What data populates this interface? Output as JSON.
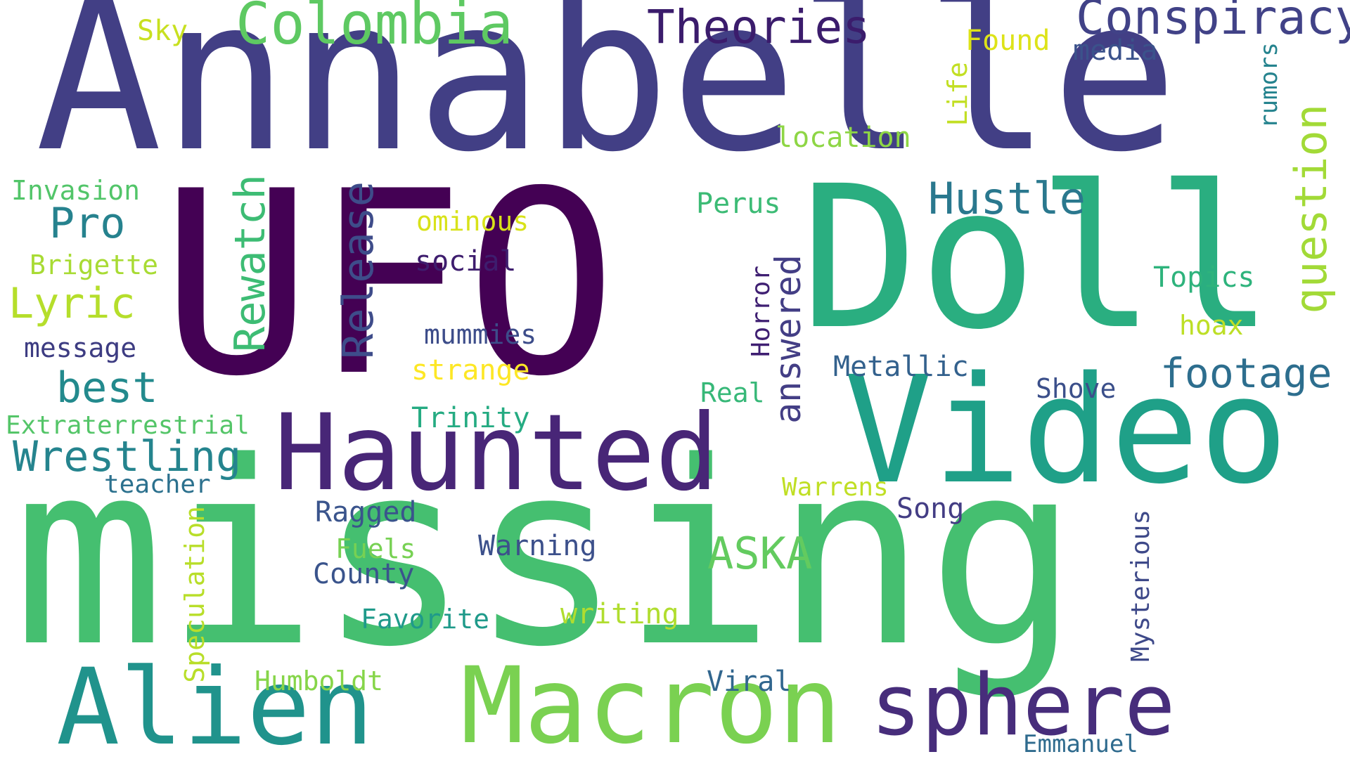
{
  "background_color": "#ffffff",
  "words": [
    {
      "id": "annabelle",
      "text": "Annabelle",
      "color": "#423f85",
      "vertical": false
    },
    {
      "id": "ufo",
      "text": "UFO",
      "color": "#440154",
      "vertical": false
    },
    {
      "id": "doll",
      "text": "Doll",
      "color": "#2aae80",
      "vertical": false
    },
    {
      "id": "missing",
      "text": "missing",
      "color": "#45bf70",
      "vertical": false
    },
    {
      "id": "video",
      "text": "Video",
      "color": "#1fa088",
      "vertical": false
    },
    {
      "id": "haunted",
      "text": "Haunted",
      "color": "#482677",
      "vertical": false
    },
    {
      "id": "macron",
      "text": "Macron",
      "color": "#7ad151",
      "vertical": false
    },
    {
      "id": "alien",
      "text": "Alien",
      "color": "#20938c",
      "vertical": false
    },
    {
      "id": "sphere",
      "text": "sphere",
      "color": "#472d7b",
      "vertical": false
    },
    {
      "id": "colombia",
      "text": "Colombia",
      "color": "#5ec962",
      "vertical": false
    },
    {
      "id": "theories",
      "text": "Theories",
      "color": "#3b1c6c",
      "vertical": false
    },
    {
      "id": "conspiracy",
      "text": "Conspiracy",
      "color": "#414287",
      "vertical": false
    },
    {
      "id": "media",
      "text": "media",
      "color": "#3b528b",
      "vertical": false
    },
    {
      "id": "found",
      "text": "Found",
      "color": "#dde318",
      "vertical": false
    },
    {
      "id": "sky",
      "text": "Sky",
      "color": "#c8e020",
      "vertical": false
    },
    {
      "id": "life",
      "text": "Life",
      "color": "#c2df23",
      "vertical": true
    },
    {
      "id": "rumors",
      "text": "rumors",
      "color": "#25838e",
      "vertical": true
    },
    {
      "id": "question",
      "text": "question",
      "color": "#a2da37",
      "vertical": true
    },
    {
      "id": "location",
      "text": "location",
      "color": "#8ed645",
      "vertical": false
    },
    {
      "id": "hustle",
      "text": "Hustle",
      "color": "#2a788e",
      "vertical": false
    },
    {
      "id": "perus",
      "text": "Perus",
      "color": "#3cbb75",
      "vertical": false
    },
    {
      "id": "invasion",
      "text": "Invasion",
      "color": "#52c569",
      "vertical": false
    },
    {
      "id": "pro",
      "text": "Pro",
      "color": "#26828e",
      "vertical": false
    },
    {
      "id": "rewatch",
      "text": "Rewatch",
      "color": "#3dbc74",
      "vertical": true
    },
    {
      "id": "release",
      "text": "Release",
      "color": "#3e4c8a",
      "vertical": true
    },
    {
      "id": "ominous",
      "text": "ominous",
      "color": "#d8e219",
      "vertical": false
    },
    {
      "id": "social",
      "text": "social",
      "color": "#3e1d6e",
      "vertical": false
    },
    {
      "id": "brigette",
      "text": "Brigette",
      "color": "#a8db34",
      "vertical": false
    },
    {
      "id": "lyric",
      "text": "Lyric",
      "color": "#b5de2b",
      "vertical": false
    },
    {
      "id": "topics",
      "text": "Topics",
      "color": "#2eb37c",
      "vertical": false
    },
    {
      "id": "horror",
      "text": "Horror",
      "color": "#3f1f72",
      "vertical": true
    },
    {
      "id": "answered",
      "text": "answered",
      "color": "#433e85",
      "vertical": true
    },
    {
      "id": "hoax",
      "text": "hoax",
      "color": "#bddf26",
      "vertical": false
    },
    {
      "id": "mummies",
      "text": "mummies",
      "color": "#3d4d8a",
      "vertical": false
    },
    {
      "id": "message",
      "text": "message",
      "color": "#3d3c82",
      "vertical": false
    },
    {
      "id": "strange",
      "text": "strange",
      "color": "#fde725",
      "vertical": false
    },
    {
      "id": "metallic",
      "text": "Metallic",
      "color": "#33618d",
      "vertical": false
    },
    {
      "id": "footage",
      "text": "footage",
      "color": "#2d6e8e",
      "vertical": false
    },
    {
      "id": "best",
      "text": "best",
      "color": "#238a8d",
      "vertical": false
    },
    {
      "id": "shove",
      "text": "Shove",
      "color": "#3b4f8a",
      "vertical": false
    },
    {
      "id": "real",
      "text": "Real",
      "color": "#37b878",
      "vertical": false
    },
    {
      "id": "extraterrestrial",
      "text": "Extraterrestrial",
      "color": "#54c568",
      "vertical": false
    },
    {
      "id": "trinity",
      "text": "Trinity",
      "color": "#25ab82",
      "vertical": false
    },
    {
      "id": "wrestling",
      "text": "Wrestling",
      "color": "#25848e",
      "vertical": false
    },
    {
      "id": "teacher",
      "text": "teacher",
      "color": "#2c718e",
      "vertical": false
    },
    {
      "id": "warrens",
      "text": "Warrens",
      "color": "#c0df25",
      "vertical": false
    },
    {
      "id": "song",
      "text": "Song",
      "color": "#433d84",
      "vertical": false
    },
    {
      "id": "ragged",
      "text": "Ragged",
      "color": "#3a548c",
      "vertical": false
    },
    {
      "id": "fuels",
      "text": "Fuels",
      "color": "#77d153",
      "vertical": false
    },
    {
      "id": "warning",
      "text": "Warning",
      "color": "#3c508b",
      "vertical": false
    },
    {
      "id": "aska",
      "text": "ASKA",
      "color": "#63cb5f",
      "vertical": false
    },
    {
      "id": "county",
      "text": "County",
      "color": "#3a548c",
      "vertical": false
    },
    {
      "id": "speculation",
      "text": "Speculation",
      "color": "#b8de29",
      "vertical": true
    },
    {
      "id": "mysterious",
      "text": "Mysterious",
      "color": "#3e4989",
      "vertical": true
    },
    {
      "id": "favorite",
      "text": "Favorite",
      "color": "#1f9a8a",
      "vertical": false
    },
    {
      "id": "writing",
      "text": "writing",
      "color": "#b0dd2f",
      "vertical": false
    },
    {
      "id": "humboldt",
      "text": "Humboldt",
      "color": "#86d549",
      "vertical": false
    },
    {
      "id": "viral",
      "text": "Viral",
      "color": "#31668e",
      "vertical": false
    },
    {
      "id": "emmanuel",
      "text": "Emmanuel",
      "color": "#2f6b8e",
      "vertical": false
    }
  ]
}
